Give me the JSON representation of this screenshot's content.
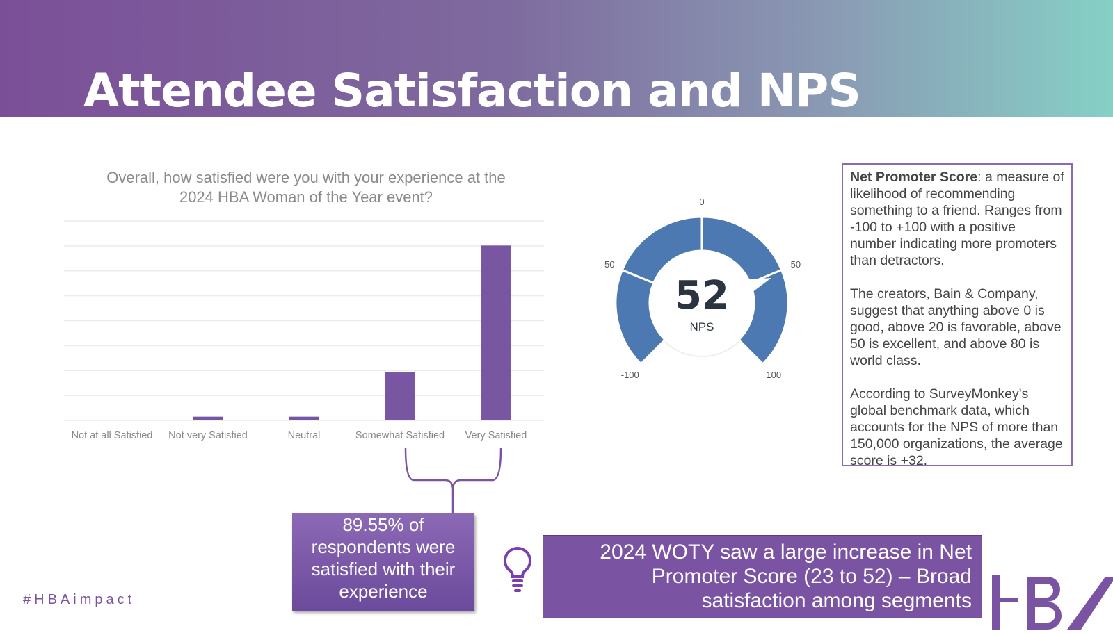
{
  "header": {
    "title": "Attendee Satisfaction and NPS"
  },
  "chart_data": {
    "type": "bar",
    "title": "Overall, how satisfied were you with your experience at the 2024 HBA Woman of the Year event?",
    "categories": [
      "Not at all Satisfied",
      "Not very Satisfied",
      "Neutral",
      "Somewhat Satisfied",
      "Very Satisfied"
    ],
    "values": [
      0,
      1.49,
      1.49,
      19.4,
      70.15
    ],
    "ylim": [
      0,
      80
    ],
    "grid": true,
    "color": "#7856a2",
    "xlabel": "",
    "ylabel": ""
  },
  "gauge": {
    "value": "52",
    "label": "NPS",
    "min": -100,
    "max": 100,
    "ticks": [
      "-100",
      "-50",
      "0",
      "50",
      "100"
    ],
    "color": "#4c79b2"
  },
  "info": {
    "bold": "Net Promoter Score",
    "p1": ": a measure of likelihood of recommending something to a friend. Ranges from -100 to +100 with a positive number indicating more promoters than detractors.",
    "p2": "The creators, Bain & Company, suggest that anything above 0 is good, above 20 is favorable, above 50 is excellent, and above 80 is world class.",
    "p3": "According to SurveyMonkey's global benchmark data, which accounts for the NPS of more than 150,000 organizations, the average score is +32."
  },
  "callout": "89.55% of respondents were satisfied with their experience",
  "insight": "2024 WOTY saw a large increase in Net Promoter Score (23 to 52) – Broad satisfaction among segments",
  "hashtag": "#HBAimpact",
  "logo": "HBA"
}
